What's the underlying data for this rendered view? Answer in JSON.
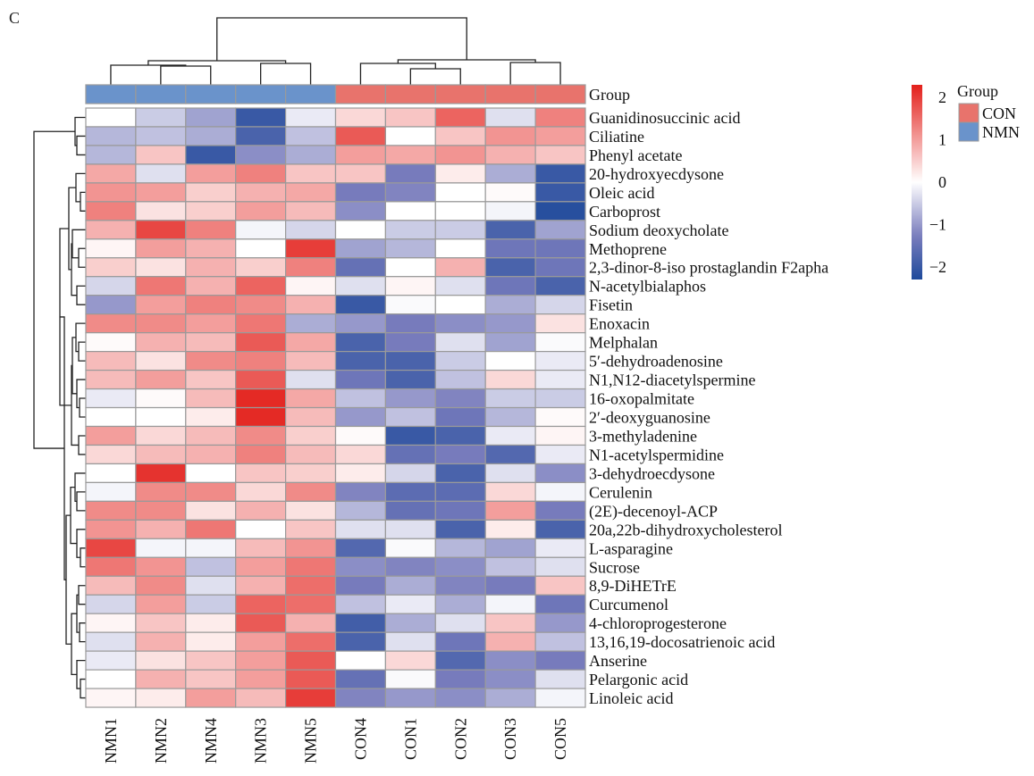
{
  "panel_label": "C",
  "chart_data": {
    "type": "heatmap",
    "title": "",
    "annotation": {
      "name": "Group",
      "levels": [
        {
          "label": "CON",
          "color": "#E8736C"
        },
        {
          "label": "NMN",
          "color": "#6A93CB"
        }
      ],
      "column_groups": [
        "NMN",
        "NMN",
        "NMN",
        "NMN",
        "NMN",
        "CON",
        "CON",
        "CON",
        "CON",
        "CON"
      ]
    },
    "columns": [
      "NMN1",
      "NMN2",
      "NMN4",
      "NMN3",
      "NMN5",
      "CON4",
      "CON1",
      "CON2",
      "CON3",
      "CON5"
    ],
    "rows": [
      "Guanidinosuccinic acid",
      "Ciliatine",
      "Phenyl acetate",
      "20-hydroxyecdysone",
      "Oleic acid",
      "Carboprost",
      "Sodium deoxycholate",
      "Methoprene",
      "2,3-dinor-8-iso prostaglandin F2apha",
      "N-acetylbialaphos",
      "Fisetin",
      "Enoxacin",
      "Melphalan",
      "5′-dehydroadenosine",
      "N1,N12-diacetylspermine",
      "16-oxopalmitate",
      "2′-deoxyguanosine",
      "3-methyladenine",
      "N1-acetylspermidine",
      "3-dehydroecdysone",
      "Cerulenin",
      "(2E)-decenoyl-ACP",
      "20a,22b-dihydroxycholesterol",
      "L-asparagine",
      "Sucrose",
      "8,9-DiHETrE",
      "Curcumenol",
      "4-chloroprogesterone",
      "13,16,19-docosatrienoic acid",
      "Anserine",
      "Pelargonic acid",
      "Linoleic acid"
    ],
    "values": [
      [
        0.0,
        -0.5,
        -0.9,
        -2.0,
        -0.2,
        0.4,
        0.6,
        1.6,
        -0.3,
        1.3
      ],
      [
        -0.7,
        -0.6,
        -0.8,
        -1.8,
        -0.6,
        1.7,
        0.0,
        0.6,
        1.1,
        1.0
      ],
      [
        -0.7,
        0.6,
        -2.0,
        -1.1,
        -0.8,
        1.0,
        0.9,
        1.1,
        0.8,
        0.6
      ],
      [
        0.9,
        -0.3,
        1.0,
        1.3,
        0.6,
        0.6,
        -1.3,
        0.2,
        -0.8,
        -2.0
      ],
      [
        1.1,
        1.0,
        0.5,
        0.8,
        0.9,
        -1.3,
        -1.2,
        0.0,
        0.05,
        -2.0
      ],
      [
        1.3,
        0.3,
        0.5,
        1.0,
        0.7,
        -1.1,
        0.0,
        0.0,
        -0.1,
        -2.2
      ],
      [
        0.8,
        1.9,
        1.3,
        -0.1,
        -0.4,
        0.0,
        -0.5,
        -0.5,
        -1.8,
        -0.9
      ],
      [
        0.1,
        1.0,
        0.8,
        0.0,
        2.0,
        -0.9,
        -0.7,
        0.0,
        -1.4,
        -1.4
      ],
      [
        0.5,
        0.3,
        0.8,
        0.5,
        1.3,
        -1.5,
        0.0,
        0.8,
        -1.8,
        -1.4
      ],
      [
        -0.4,
        1.4,
        0.8,
        1.6,
        0.1,
        -0.3,
        0.1,
        -0.3,
        -1.4,
        -1.8
      ],
      [
        -1.0,
        1.0,
        1.3,
        1.2,
        0.8,
        -2.0,
        -0.05,
        0.0,
        -0.8,
        -0.4
      ],
      [
        1.2,
        1.2,
        1.0,
        1.4,
        -0.8,
        -1.0,
        -1.3,
        -1.1,
        -1.0,
        0.3
      ],
      [
        0.05,
        0.8,
        0.7,
        1.7,
        0.9,
        -1.8,
        -1.3,
        -0.3,
        -0.9,
        -0.05
      ],
      [
        0.7,
        0.3,
        1.2,
        1.3,
        0.7,
        -1.8,
        -1.8,
        -0.5,
        0.0,
        -0.2
      ],
      [
        0.7,
        1.0,
        0.6,
        1.7,
        -0.3,
        -1.4,
        -1.8,
        -0.6,
        0.4,
        -0.2
      ],
      [
        -0.2,
        0.05,
        0.7,
        2.2,
        0.9,
        -0.6,
        -1.0,
        -1.2,
        -0.5,
        -0.5
      ],
      [
        0.0,
        0.0,
        0.2,
        2.2,
        0.7,
        -1.0,
        -0.6,
        -1.4,
        -0.7,
        0.05
      ],
      [
        1.0,
        0.4,
        0.7,
        1.2,
        0.5,
        0.05,
        -2.0,
        -1.8,
        -0.2,
        0.1
      ],
      [
        0.4,
        0.7,
        0.8,
        1.3,
        0.7,
        0.4,
        -1.5,
        -1.3,
        -1.7,
        -0.2
      ],
      [
        0.0,
        2.1,
        0.0,
        0.6,
        0.5,
        0.2,
        -0.4,
        -1.8,
        -0.3,
        -1.1
      ],
      [
        -0.1,
        1.2,
        1.2,
        0.4,
        1.2,
        -1.2,
        -1.6,
        -1.6,
        0.4,
        -0.1
      ],
      [
        1.2,
        1.2,
        0.3,
        0.8,
        0.3,
        -0.7,
        -1.5,
        -1.4,
        1.0,
        -1.3
      ],
      [
        1.1,
        0.8,
        1.4,
        0.0,
        0.6,
        -0.3,
        -0.3,
        -1.8,
        0.2,
        -1.8
      ],
      [
        1.9,
        -0.1,
        -0.1,
        0.7,
        1.1,
        -1.7,
        -0.05,
        -0.7,
        -0.9,
        -0.2
      ],
      [
        1.4,
        1.1,
        -0.6,
        1.0,
        1.4,
        -1.1,
        -1.2,
        -1.1,
        -0.6,
        -0.3
      ],
      [
        0.7,
        1.2,
        -0.3,
        0.8,
        1.5,
        -1.3,
        -0.8,
        -1.2,
        -1.3,
        0.6
      ],
      [
        -0.4,
        1.0,
        -0.5,
        1.6,
        1.5,
        -0.6,
        -0.2,
        -0.8,
        -0.1,
        -1.4
      ],
      [
        0.1,
        0.6,
        0.2,
        1.7,
        0.8,
        -1.9,
        -0.8,
        -0.3,
        0.6,
        -1.0
      ],
      [
        -0.3,
        0.8,
        0.2,
        1.0,
        1.5,
        -1.8,
        -0.3,
        -1.4,
        0.8,
        -0.6
      ],
      [
        -0.2,
        0.3,
        0.6,
        1.0,
        1.7,
        0.0,
        0.4,
        -1.7,
        -1.1,
        -1.3
      ],
      [
        0.0,
        0.8,
        0.6,
        1.0,
        1.7,
        -1.5,
        -0.05,
        -1.3,
        -1.1,
        -0.3
      ],
      [
        0.1,
        0.2,
        1.0,
        0.7,
        2.0,
        -1.2,
        -1.0,
        -1.1,
        -0.8,
        -0.1
      ]
    ],
    "color_scale": {
      "range": [
        -2.3,
        2.3
      ],
      "low": "#1E4A9B",
      "mid_low": "#7A7DBD",
      "mid": "#FFFFFF",
      "high": "#E3201B",
      "ticks": [
        "2",
        "1",
        "0",
        "−1",
        "−2"
      ],
      "tick_values": [
        2,
        1,
        0,
        -1,
        -2
      ]
    },
    "column_dendrogram": true,
    "row_dendrogram": true,
    "legend_placement": "right"
  }
}
